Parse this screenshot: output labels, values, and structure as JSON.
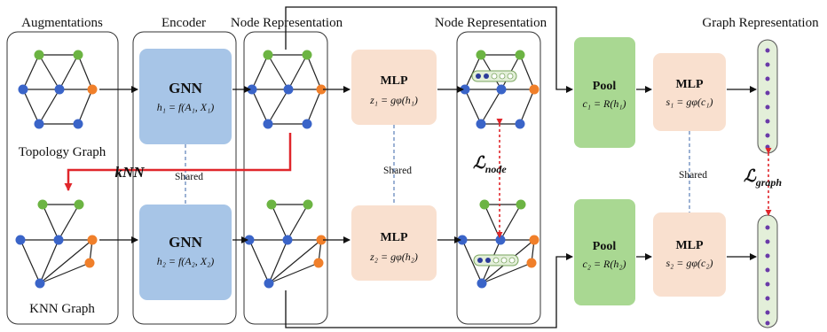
{
  "headers": {
    "augmentations": "Augmentations",
    "encoder": "Encoder",
    "node_rep_1": "Node Representation",
    "node_rep_2": "Node Representation",
    "graph_rep": "Graph Representation"
  },
  "graphs": {
    "topology_label": "Topology Graph",
    "knn_label": "KNN Graph"
  },
  "encoder": {
    "top_title": "GNN",
    "top_formula": "h₁ = f(A₁, X₁)",
    "bottom_title": "GNN",
    "bottom_formula": "h₂ = f(A₂, X₂)",
    "shared": "Shared"
  },
  "mlp_node": {
    "top_title": "MLP",
    "top_formula": "z₁ = gφ(h₁)",
    "bottom_title": "MLP",
    "bottom_formula": "z₂ = gφ(h₂)",
    "shared": "Shared"
  },
  "pool": {
    "top_title": "Pool",
    "top_formula": "c₁ = R(h₁)",
    "bottom_title": "Pool",
    "bottom_formula": "c₂ = R(h₂)"
  },
  "mlp_graph": {
    "top_title": "MLP",
    "top_formula": "s₁ = gφ(c₁)",
    "bottom_title": "MLP",
    "bottom_formula": "s₂ = gφ(c₂)",
    "shared": "Shared"
  },
  "knn_arrow_label": "kNN",
  "losses": {
    "node": "ℒ",
    "node_sub": "node",
    "graph": "ℒ",
    "graph_sub": "graph"
  },
  "colors": {
    "node_blue": "#3a64c8",
    "node_green": "#6cb443",
    "node_orange": "#f07f2a",
    "node_purple": "#6a3aa8",
    "gnn_fill": "#a7c5e7",
    "mlp_fill": "#f9e0cf",
    "pool_fill": "#a9d892",
    "vector_fill": "#e3efd9",
    "red": "#e0262b"
  }
}
